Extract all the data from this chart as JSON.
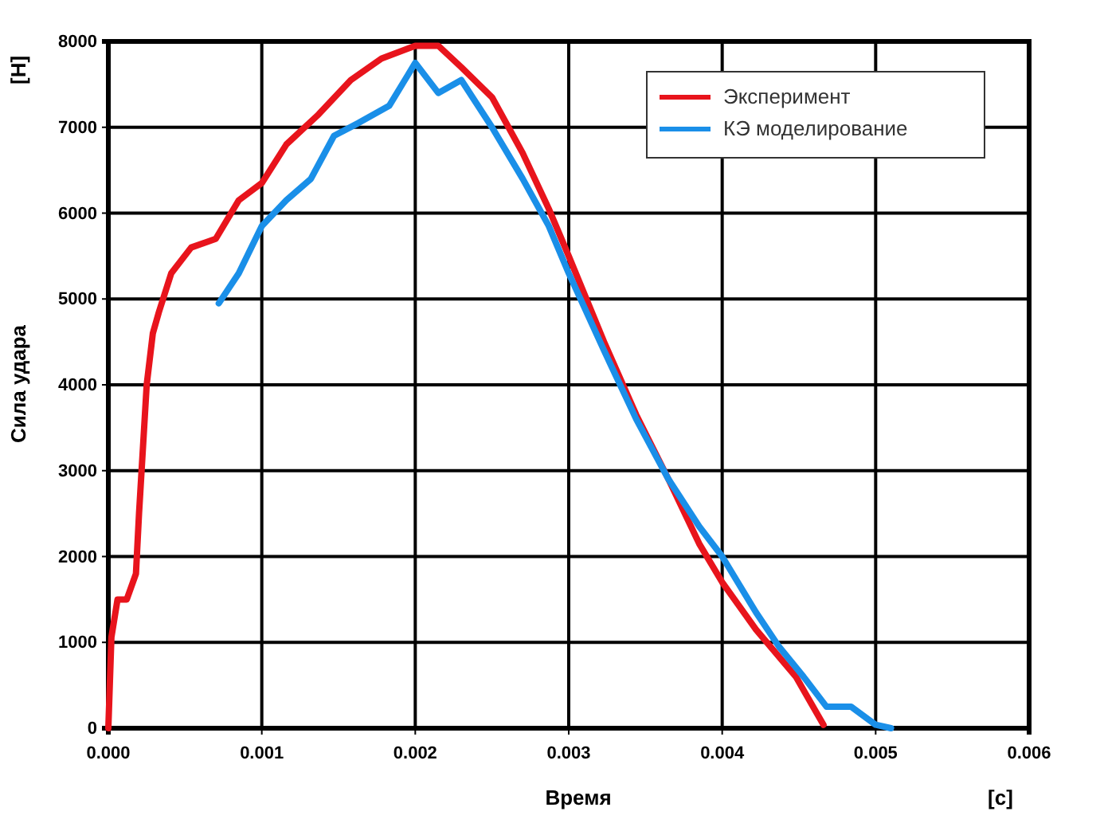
{
  "chart_data": {
    "type": "line",
    "xlabel": "Время",
    "ylabel": "Сила удара",
    "annotations": [
      "[Н]",
      "[с]"
    ],
    "xlim": [
      0,
      0.006
    ],
    "xticks": [
      {
        "value": 0,
        "label": "0.000"
      },
      {
        "value": 0.001,
        "label": "0.001"
      },
      {
        "value": 0.002,
        "label": "0.002"
      },
      {
        "value": 0.003,
        "label": "0.003"
      },
      {
        "value": 0.004,
        "label": "0.004"
      },
      {
        "value": 0.005,
        "label": "0.005"
      },
      {
        "value": 0.006,
        "label": "0.006"
      }
    ],
    "ylim": [
      0,
      8000
    ],
    "yticks": [
      0,
      1000,
      2000,
      3000,
      4000,
      5000,
      6000,
      7000,
      8000
    ],
    "grid": true,
    "legend": "top right",
    "marker": "none",
    "line_style": "solid",
    "series": [
      {
        "name": "Эксперимент",
        "color": "#e8141c",
        "x": [
          0,
          2e-05,
          6e-05,
          0.00012,
          0.00018,
          0.0002,
          0.00025,
          0.00029,
          0.00033,
          0.00041,
          0.00054,
          0.0007,
          0.00085,
          0.001,
          0.00116,
          0.00137,
          0.00158,
          0.00178,
          0.002,
          0.00215,
          0.0023,
          0.0025,
          0.0027,
          0.00287,
          0.003,
          0.00323,
          0.00344,
          0.00365,
          0.00385,
          0.004,
          0.00422,
          0.00448,
          0.00466
        ],
        "values": [
          0,
          1060,
          1500,
          1500,
          1800,
          2500,
          4000,
          4600,
          4850,
          5300,
          5600,
          5700,
          6150,
          6350,
          6800,
          7150,
          7550,
          7800,
          7950,
          7950,
          7700,
          7350,
          6700,
          6050,
          5500,
          4500,
          3650,
          2900,
          2150,
          1700,
          1150,
          600,
          40
        ]
      },
      {
        "name": "КЭ моделирование",
        "color": "#1a8fe8",
        "x": [
          0.00072,
          0.00085,
          0.001,
          0.00116,
          0.00132,
          0.00147,
          0.00163,
          0.00183,
          0.002,
          0.00215,
          0.0023,
          0.0025,
          0.0027,
          0.00287,
          0.003,
          0.00323,
          0.00344,
          0.00365,
          0.00385,
          0.004,
          0.00422,
          0.00437,
          0.00453,
          0.00468,
          0.00484,
          0.005,
          0.0051
        ],
        "values": [
          4950,
          5300,
          5850,
          6150,
          6400,
          6900,
          7050,
          7250,
          7750,
          7400,
          7550,
          7000,
          6400,
          5850,
          5300,
          4400,
          3600,
          2900,
          2350,
          2000,
          1350,
          950,
          600,
          250,
          250,
          40,
          0
        ]
      }
    ]
  }
}
